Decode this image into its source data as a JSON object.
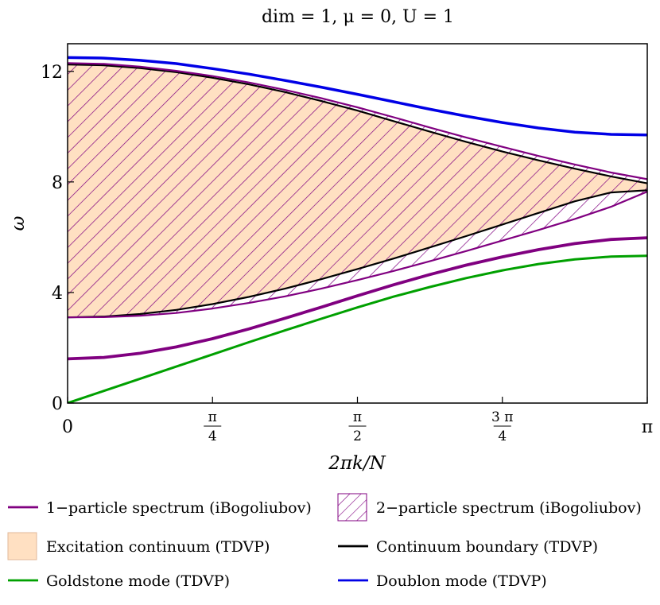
{
  "chart_data": {
    "type": "line",
    "title": "dim = 1, μ = 0, U = 1",
    "xlabel": "2πk/N",
    "ylabel": "ω",
    "xlim": [
      0,
      3.14159
    ],
    "ylim": [
      0,
      13
    ],
    "x_ticks": [
      {
        "value": 0,
        "label": "0",
        "kind": "plain"
      },
      {
        "value": 0.7854,
        "num": "π",
        "den": "4",
        "kind": "frac"
      },
      {
        "value": 1.5708,
        "num": "π",
        "den": "2",
        "kind": "frac"
      },
      {
        "value": 2.3562,
        "num": "3 π",
        "den": "4",
        "kind": "frac"
      },
      {
        "value": 3.14159,
        "label": "π",
        "kind": "plain"
      }
    ],
    "y_ticks": [
      {
        "value": 0,
        "label": "0"
      },
      {
        "value": 4,
        "label": "4"
      },
      {
        "value": 8,
        "label": "8"
      },
      {
        "value": 12,
        "label": "12"
      }
    ],
    "grid": false,
    "legend_position": "below",
    "x": [
      0,
      0.19635,
      0.3927,
      0.58905,
      0.7854,
      0.98175,
      1.1781,
      1.37445,
      1.5708,
      1.76715,
      1.9635,
      2.15985,
      2.3562,
      2.55255,
      2.7489,
      2.94525,
      3.14159
    ],
    "series": [
      {
        "name": "Doublon mode (TDVP)",
        "color": "#0000e6",
        "width": 3.5,
        "values": [
          12.5,
          12.48,
          12.4,
          12.28,
          12.1,
          11.9,
          11.67,
          11.43,
          11.17,
          10.9,
          10.63,
          10.38,
          10.15,
          9.95,
          9.8,
          9.72,
          9.7
        ]
      },
      {
        "name": "Continuum boundary (TDVP) upper",
        "color": "#000000",
        "width": 2.2,
        "values": [
          12.25,
          12.22,
          12.12,
          11.97,
          11.77,
          11.53,
          11.25,
          10.93,
          10.58,
          10.2,
          9.82,
          9.45,
          9.1,
          8.78,
          8.48,
          8.2,
          7.95
        ]
      },
      {
        "name": "1−particle spectrum (iBogoliubov) upper",
        "color": "#800080",
        "width": 2.2,
        "values": [
          12.3,
          12.27,
          12.17,
          12.02,
          11.83,
          11.6,
          11.33,
          11.03,
          10.7,
          10.34,
          9.97,
          9.61,
          9.27,
          8.94,
          8.63,
          8.34,
          8.1
        ]
      },
      {
        "name": "Continuum boundary (TDVP) lower",
        "color": "#000000",
        "width": 2.2,
        "values": [
          3.1,
          3.13,
          3.22,
          3.37,
          3.58,
          3.84,
          4.14,
          4.48,
          4.85,
          5.23,
          5.63,
          6.04,
          6.46,
          6.88,
          7.3,
          7.62,
          7.7
        ]
      },
      {
        "name": "1−particle spectrum (iBogoliubov) lower",
        "color": "#800080",
        "width": 2.2,
        "values": [
          3.1,
          3.11,
          3.16,
          3.26,
          3.42,
          3.62,
          3.86,
          4.14,
          4.45,
          4.78,
          5.13,
          5.5,
          5.88,
          6.26,
          6.66,
          7.1,
          7.65
        ]
      },
      {
        "name": "1−particle spectrum (iBogoliubov)",
        "color": "#800080",
        "width": 3.8,
        "values": [
          1.6,
          1.65,
          1.8,
          2.03,
          2.33,
          2.68,
          3.07,
          3.47,
          3.88,
          4.28,
          4.65,
          4.99,
          5.29,
          5.55,
          5.77,
          5.92,
          5.98
        ]
      },
      {
        "name": "Goldstone mode (TDVP)",
        "color": "#00a000",
        "width": 3.0,
        "values": [
          0,
          0.44,
          0.88,
          1.32,
          1.76,
          2.2,
          2.63,
          3.05,
          3.46,
          3.85,
          4.2,
          4.52,
          4.8,
          5.03,
          5.2,
          5.3,
          5.33
        ]
      }
    ],
    "continuum": {
      "fill": "#ffe0c2",
      "hatch_color": "#800080"
    },
    "legend": [
      {
        "label": "1−particle spectrum (iBogoliubov)",
        "kind": "line",
        "color": "#800080"
      },
      {
        "label": "2−particle spectrum (iBogoliubov)",
        "kind": "hatch",
        "color": "#800080"
      },
      {
        "label": "Excitation continuum (TDVP)",
        "kind": "patch",
        "color": "#ffe0c2"
      },
      {
        "label": "Continuum boundary (TDVP)",
        "kind": "line",
        "color": "#000000"
      },
      {
        "label": "Goldstone mode (TDVP)",
        "kind": "line",
        "color": "#00a000"
      },
      {
        "label": "Doublon mode (TDVP)",
        "kind": "line",
        "color": "#0000e6"
      }
    ]
  }
}
